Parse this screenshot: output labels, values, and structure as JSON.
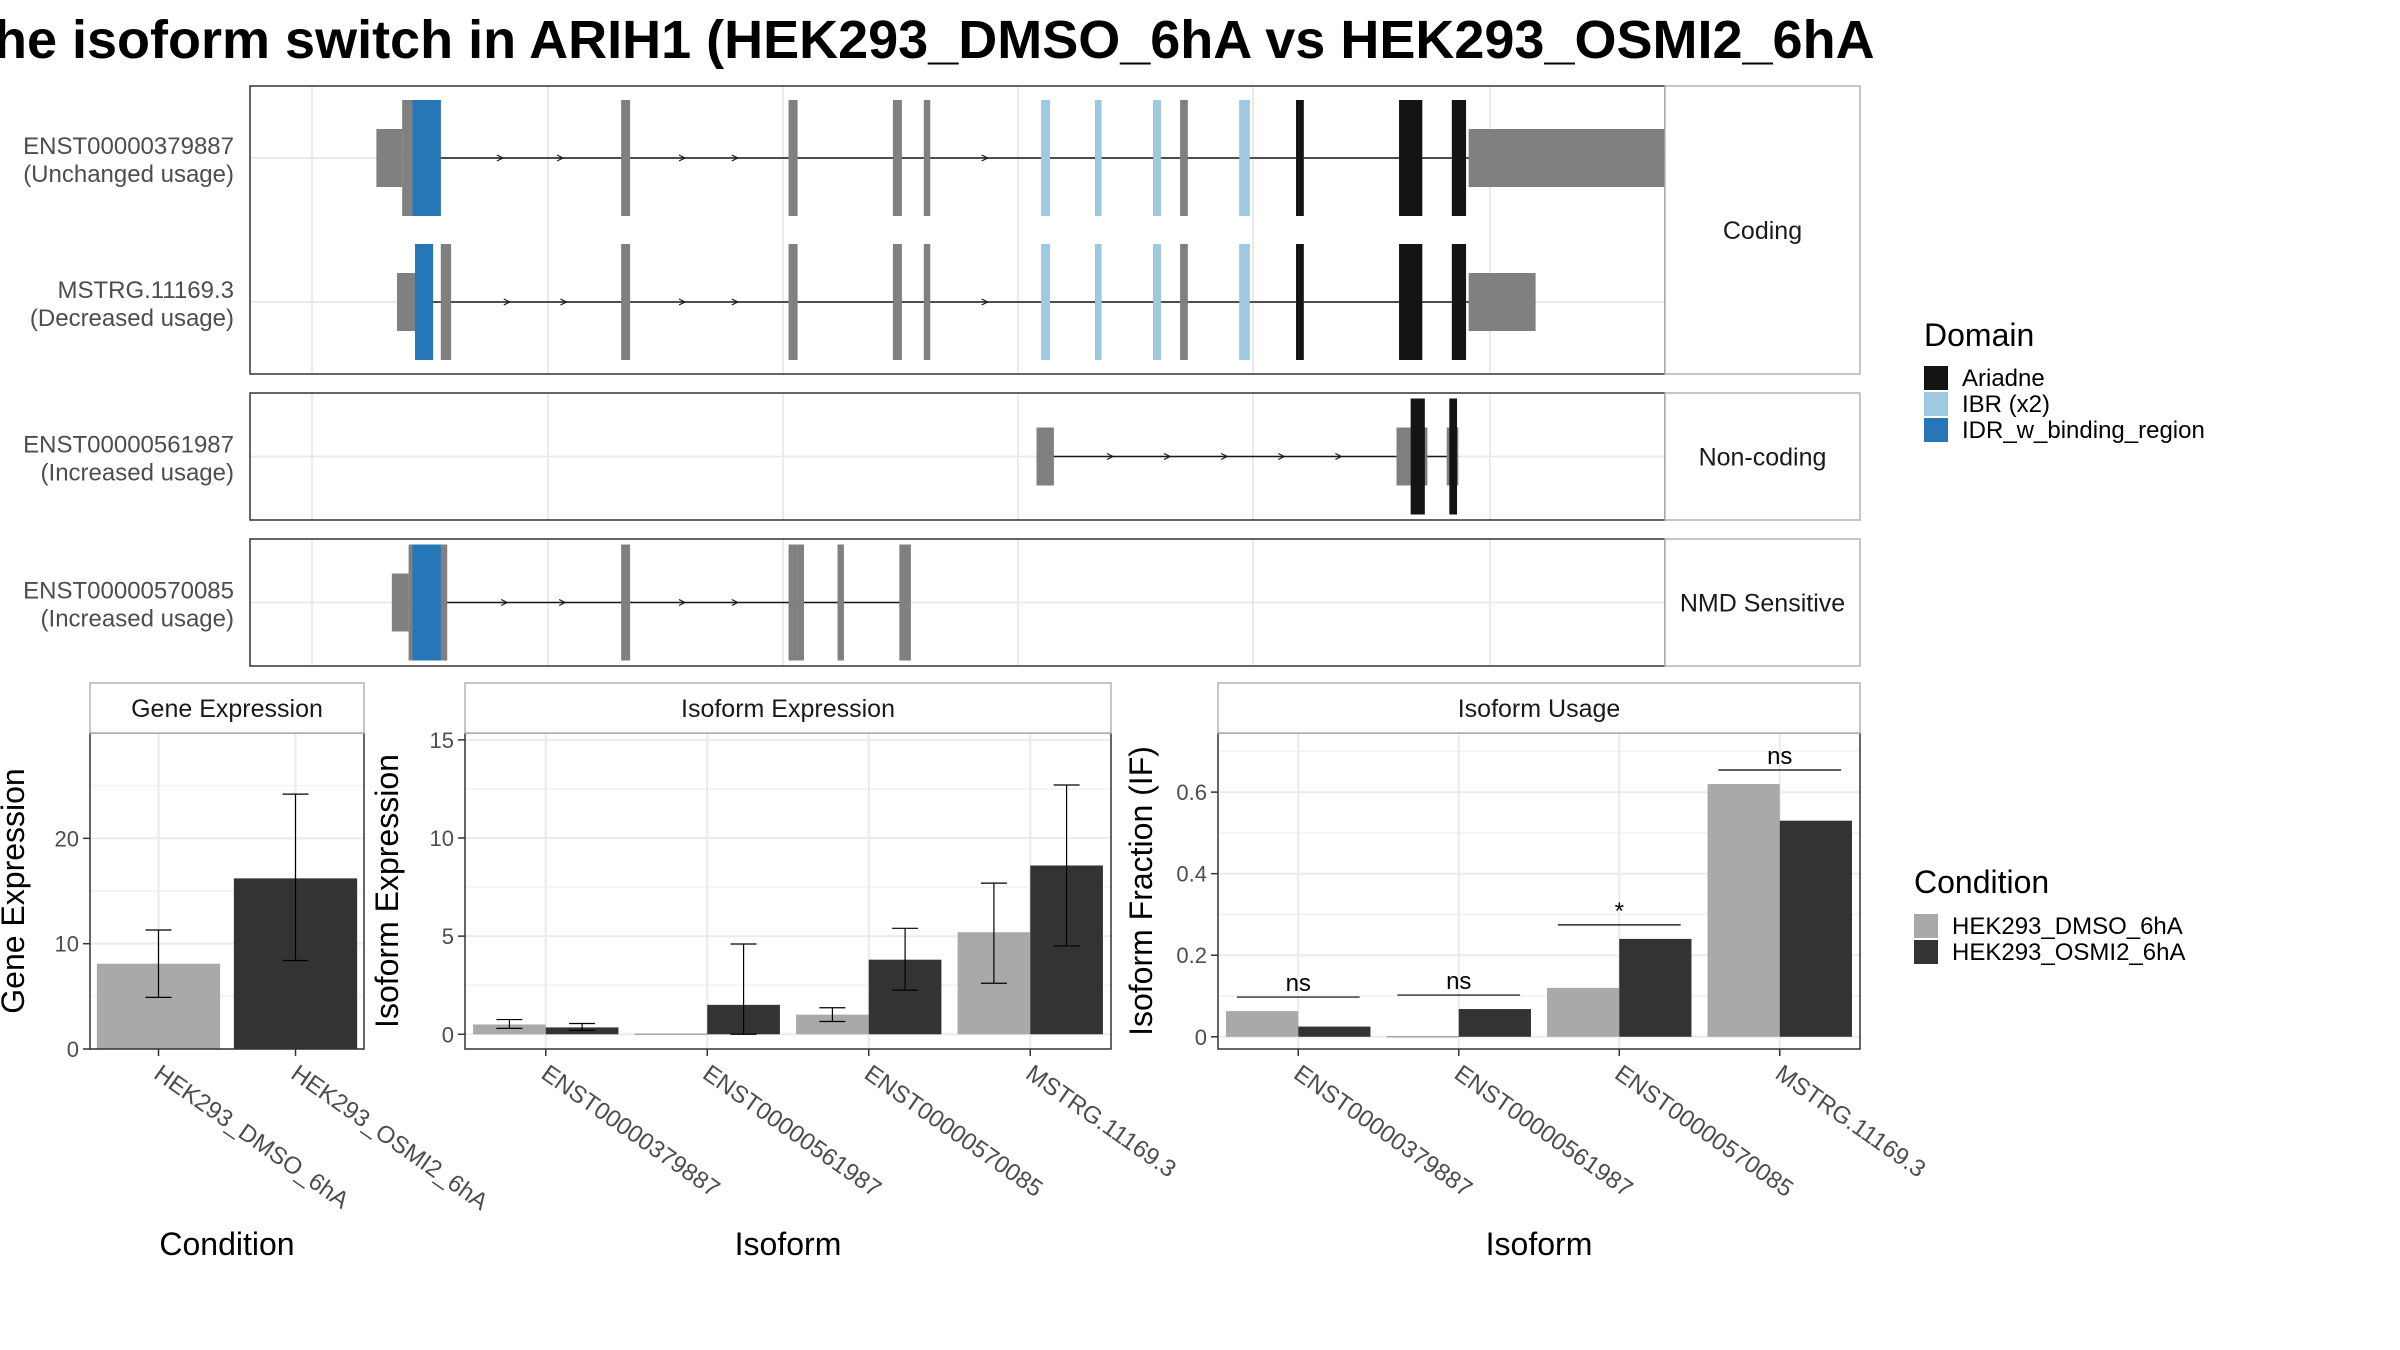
{
  "title": "he isoform switch in ARIH1 (HEK293_DMSO_6hA vs HEK293_OSMI2_6hA",
  "colors": {
    "exon": "#808080",
    "Ariadne": "#141414",
    "IBR (x2)": "#9ecae1",
    "IDR_w_binding_region": "#2676b8",
    "HEK293_DMSO_6hA": "#a9a9a9",
    "HEK293_OSMI2_6hA": "#333333"
  },
  "transcript_panels": [
    {
      "strip": "Coding",
      "transcripts": [
        {
          "name": "ENST00000379887",
          "usage": "(Unchanged usage)",
          "exons": [
            [
              0.05,
              0.07,
              "utr"
            ],
            [
              0.07,
              0.1,
              "coding"
            ],
            [
              0.24,
              0.247,
              "coding"
            ],
            [
              0.37,
              0.377,
              "coding"
            ],
            [
              0.451,
              0.458,
              "coding"
            ],
            [
              0.475,
              0.48,
              "coding"
            ],
            [
              0.566,
              0.573,
              "coding"
            ],
            [
              0.608,
              0.613,
              "coding"
            ],
            [
              0.653,
              0.659,
              "coding"
            ],
            [
              0.674,
              0.68,
              "coding"
            ],
            [
              0.72,
              0.728,
              "coding"
            ],
            [
              0.764,
              0.77,
              "coding"
            ],
            [
              0.844,
              0.862,
              "coding"
            ],
            [
              0.885,
              0.896,
              "coding"
            ],
            [
              0.898,
              1.05,
              "utr"
            ]
          ],
          "domains": [
            [
              0.078,
              0.1,
              "IDR_w_binding_region"
            ],
            [
              0.566,
              0.573,
              "IBR (x2)"
            ],
            [
              0.608,
              0.613,
              "IBR (x2)"
            ],
            [
              0.653,
              0.659,
              "IBR (x2)"
            ],
            [
              0.72,
              0.728,
              "IBR (x2)"
            ],
            [
              0.764,
              0.77,
              "Ariadne"
            ],
            [
              0.844,
              0.862,
              "Ariadne"
            ],
            [
              0.885,
              0.896,
              "Ariadne"
            ]
          ]
        },
        {
          "name": "MSTRG.11169.3",
          "usage": "(Decreased usage)",
          "exons": [
            [
              0.066,
              0.08,
              "utr"
            ],
            [
              0.08,
              0.094,
              "coding"
            ],
            [
              0.1,
              0.108,
              "coding"
            ],
            [
              0.24,
              0.247,
              "coding"
            ],
            [
              0.37,
              0.377,
              "coding"
            ],
            [
              0.451,
              0.458,
              "coding"
            ],
            [
              0.475,
              0.48,
              "coding"
            ],
            [
              0.566,
              0.573,
              "coding"
            ],
            [
              0.608,
              0.613,
              "coding"
            ],
            [
              0.653,
              0.659,
              "coding"
            ],
            [
              0.674,
              0.68,
              "coding"
            ],
            [
              0.72,
              0.728,
              "coding"
            ],
            [
              0.764,
              0.77,
              "coding"
            ],
            [
              0.844,
              0.862,
              "coding"
            ],
            [
              0.885,
              0.896,
              "coding"
            ],
            [
              0.898,
              0.95,
              "utr"
            ]
          ],
          "domains": [
            [
              0.08,
              0.094,
              "IDR_w_binding_region"
            ],
            [
              0.566,
              0.573,
              "IBR (x2)"
            ],
            [
              0.608,
              0.613,
              "IBR (x2)"
            ],
            [
              0.653,
              0.659,
              "IBR (x2)"
            ],
            [
              0.72,
              0.728,
              "IBR (x2)"
            ],
            [
              0.764,
              0.77,
              "Ariadne"
            ],
            [
              0.844,
              0.862,
              "Ariadne"
            ],
            [
              0.885,
              0.896,
              "Ariadne"
            ]
          ]
        }
      ]
    },
    {
      "strip": "Non-coding",
      "transcripts": [
        {
          "name": "ENST00000561987",
          "usage": "(Increased usage)",
          "exons": [
            [
              0.5625,
              0.576,
              "utr"
            ],
            [
              0.842,
              0.866,
              "utr"
            ],
            [
              0.881,
              0.89,
              "utr"
            ]
          ],
          "domains": [
            [
              0.853,
              0.864,
              "Ariadne"
            ],
            [
              0.883,
              0.889,
              "Ariadne"
            ]
          ]
        }
      ]
    },
    {
      "strip": "NMD Sensitive",
      "transcripts": [
        {
          "name": "ENST00000570085",
          "usage": "(Increased usage)",
          "exons": [
            [
              0.062,
              0.075,
              "utr"
            ],
            [
              0.075,
              0.105,
              "coding"
            ],
            [
              0.24,
              0.247,
              "coding"
            ],
            [
              0.37,
              0.377,
              "coding"
            ],
            [
              0.377,
              0.382,
              "coding"
            ],
            [
              0.408,
              0.413,
              "coding"
            ],
            [
              0.456,
              0.465,
              "coding"
            ]
          ],
          "domains": [
            [
              0.078,
              0.1,
              "IDR_w_binding_region"
            ]
          ]
        }
      ]
    }
  ],
  "domain_legend": {
    "title": "Domain",
    "entries": [
      "Ariadne",
      "IBR (x2)",
      "IDR_w_binding_region"
    ]
  },
  "condition_legend": {
    "title": "Condition",
    "entries": [
      "HEK293_DMSO_6hA",
      "HEK293_OSMI2_6hA"
    ]
  },
  "chart_data": [
    {
      "type": "bar",
      "title": "Gene Expression",
      "xlabel": "Condition",
      "ylabel": "Gene Expression",
      "categories": [
        "HEK293_DMSO_6hA",
        "HEK293_OSMI2_6hA"
      ],
      "values": [
        8.1,
        16.2
      ],
      "errors_low": [
        4.9,
        8.4
      ],
      "errors_high": [
        11.3,
        24.2
      ],
      "yticks": [
        0,
        10,
        20
      ],
      "ylim": [
        0,
        30
      ]
    },
    {
      "type": "bar",
      "title": "Isoform Expression",
      "xlabel": "Isoform",
      "ylabel": "Isoform Expression",
      "categories": [
        "ENST00000379887",
        "ENST00000561987",
        "ENST00000570085",
        "MSTRG.11169.3"
      ],
      "series": [
        {
          "name": "HEK293_DMSO_6hA",
          "values": [
            0.5,
            0.0,
            1.0,
            5.2
          ],
          "errors_low": [
            0.3,
            0.0,
            0.65,
            2.6
          ],
          "errors_high": [
            0.75,
            0.0,
            1.35,
            7.7
          ]
        },
        {
          "name": "HEK293_OSMI2_6hA",
          "values": [
            0.35,
            1.5,
            3.8,
            8.6
          ],
          "errors_low": [
            0.2,
            0.0,
            2.25,
            4.5
          ],
          "errors_high": [
            0.55,
            4.6,
            5.4,
            12.7
          ]
        }
      ],
      "yticks": [
        0,
        5,
        10,
        15
      ],
      "ylim": [
        -0.75,
        15.35
      ]
    },
    {
      "type": "bar",
      "title": "Isoform Usage",
      "xlabel": "Isoform",
      "ylabel": "Isoform Fraction (IF)",
      "categories": [
        "ENST00000379887",
        "ENST00000561987",
        "ENST00000570085",
        "MSTRG.11169.3"
      ],
      "series": [
        {
          "name": "HEK293_DMSO_6hA",
          "values": [
            0.063,
            0.0,
            0.12,
            0.62
          ]
        },
        {
          "name": "HEK293_OSMI2_6hA",
          "values": [
            0.025,
            0.068,
            0.24,
            0.53
          ]
        }
      ],
      "significance": [
        "ns",
        "ns",
        "*",
        "ns"
      ],
      "yticks": [
        0.0,
        0.2,
        0.4,
        0.6
      ],
      "ylim": [
        -0.03,
        0.745
      ]
    }
  ]
}
